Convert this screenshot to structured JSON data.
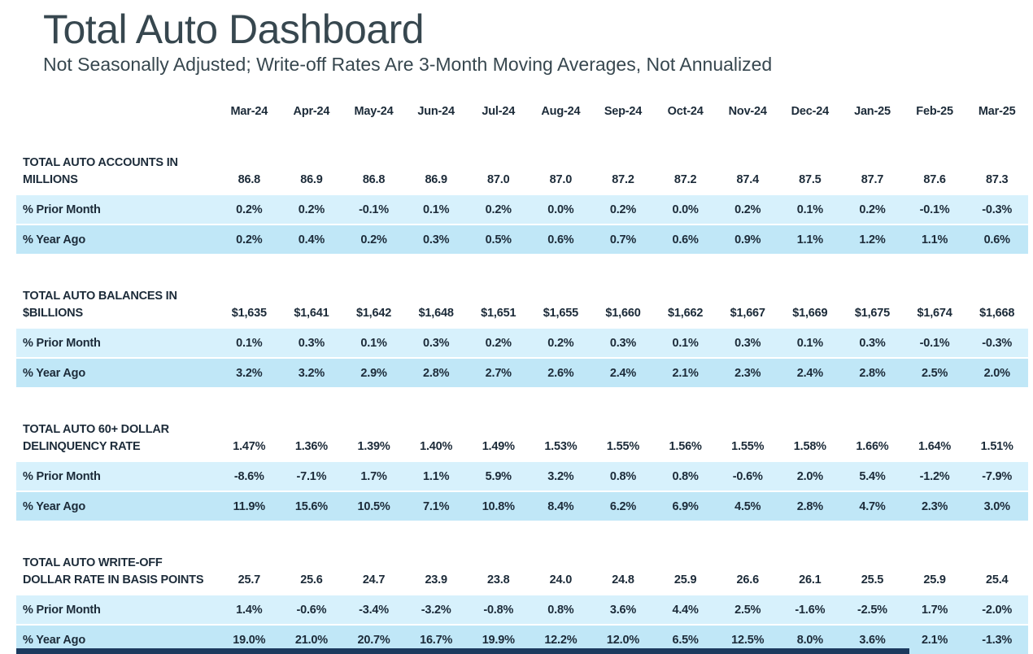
{
  "header": {
    "title": "Total Auto Dashboard",
    "subtitle": "Not Seasonally Adjusted; Write-off Rates Are 3-Month Moving Averages, Not Annualized"
  },
  "table": {
    "months": [
      "Mar-24",
      "Apr-24",
      "May-24",
      "Jun-24",
      "Jul-24",
      "Aug-24",
      "Sep-24",
      "Oct-24",
      "Nov-24",
      "Dec-24",
      "Jan-25",
      "Feb-25",
      "Mar-25"
    ],
    "row_labels": {
      "prior": "% Prior Month",
      "year": "% Year Ago"
    },
    "sections": [
      {
        "name_line1": "TOTAL AUTO ACCOUNTS IN",
        "name_line2": "MILLIONS",
        "values": [
          "86.8",
          "86.9",
          "86.8",
          "86.9",
          "87.0",
          "87.0",
          "87.2",
          "87.2",
          "87.4",
          "87.5",
          "87.7",
          "87.6",
          "87.3"
        ],
        "prior_month": [
          "0.2%",
          "0.2%",
          "-0.1%",
          "0.1%",
          "0.2%",
          "0.0%",
          "0.2%",
          "0.0%",
          "0.2%",
          "0.1%",
          "0.2%",
          "-0.1%",
          "-0.3%"
        ],
        "year_ago": [
          "0.2%",
          "0.4%",
          "0.2%",
          "0.3%",
          "0.5%",
          "0.6%",
          "0.7%",
          "0.6%",
          "0.9%",
          "1.1%",
          "1.2%",
          "1.1%",
          "0.6%"
        ]
      },
      {
        "name_line1": "TOTAL AUTO BALANCES IN",
        "name_line2": "$BILLIONS",
        "values": [
          "$1,635",
          "$1,641",
          "$1,642",
          "$1,648",
          "$1,651",
          "$1,655",
          "$1,660",
          "$1,662",
          "$1,667",
          "$1,669",
          "$1,675",
          "$1,674",
          "$1,668"
        ],
        "prior_month": [
          "0.1%",
          "0.3%",
          "0.1%",
          "0.3%",
          "0.2%",
          "0.2%",
          "0.3%",
          "0.1%",
          "0.3%",
          "0.1%",
          "0.3%",
          "-0.1%",
          "-0.3%"
        ],
        "year_ago": [
          "3.2%",
          "3.2%",
          "2.9%",
          "2.8%",
          "2.7%",
          "2.6%",
          "2.4%",
          "2.1%",
          "2.3%",
          "2.4%",
          "2.8%",
          "2.5%",
          "2.0%"
        ]
      },
      {
        "name_line1": "TOTAL AUTO 60+ DOLLAR",
        "name_line2": "DELINQUENCY RATE",
        "values": [
          "1.47%",
          "1.36%",
          "1.39%",
          "1.40%",
          "1.49%",
          "1.53%",
          "1.55%",
          "1.56%",
          "1.55%",
          "1.58%",
          "1.66%",
          "1.64%",
          "1.51%"
        ],
        "prior_month": [
          "-8.6%",
          "-7.1%",
          "1.7%",
          "1.1%",
          "5.9%",
          "3.2%",
          "0.8%",
          "0.8%",
          "-0.6%",
          "2.0%",
          "5.4%",
          "-1.2%",
          "-7.9%"
        ],
        "year_ago": [
          "11.9%",
          "15.6%",
          "10.5%",
          "7.1%",
          "10.8%",
          "8.4%",
          "6.2%",
          "6.9%",
          "4.5%",
          "2.8%",
          "4.7%",
          "2.3%",
          "3.0%"
        ]
      },
      {
        "name_line1": "TOTAL AUTO WRITE-OFF",
        "name_line2": "DOLLAR RATE IN BASIS POINTS",
        "values": [
          "25.7",
          "25.6",
          "24.7",
          "23.9",
          "23.8",
          "24.0",
          "24.8",
          "25.9",
          "26.6",
          "26.1",
          "25.5",
          "25.9",
          "25.4"
        ],
        "prior_month": [
          "1.4%",
          "-0.6%",
          "-3.4%",
          "-3.2%",
          "-0.8%",
          "0.8%",
          "3.6%",
          "4.4%",
          "2.5%",
          "-1.6%",
          "-2.5%",
          "1.7%",
          "-2.0%"
        ],
        "year_ago": [
          "19.0%",
          "21.0%",
          "20.7%",
          "16.7%",
          "19.9%",
          "12.2%",
          "12.0%",
          "6.5%",
          "12.5%",
          "8.0%",
          "3.6%",
          "2.1%",
          "-1.3%"
        ]
      }
    ]
  },
  "colors": {
    "title_text": "#37474f",
    "table_text": "#1c2b39",
    "stripe_prior_month": "#d7f1fc",
    "stripe_year_ago": "#c0e7f7",
    "bottom_accent_bar": "#1b3a5e",
    "background": "#ffffff"
  },
  "chart_data": [
    {
      "type": "table",
      "title": "TOTAL AUTO ACCOUNTS IN MILLIONS",
      "categories": [
        "Mar-24",
        "Apr-24",
        "May-24",
        "Jun-24",
        "Jul-24",
        "Aug-24",
        "Sep-24",
        "Oct-24",
        "Nov-24",
        "Dec-24",
        "Jan-25",
        "Feb-25",
        "Mar-25"
      ],
      "series": [
        {
          "name": "Accounts (millions)",
          "values": [
            86.8,
            86.9,
            86.8,
            86.9,
            87.0,
            87.0,
            87.2,
            87.2,
            87.4,
            87.5,
            87.7,
            87.6,
            87.3
          ]
        },
        {
          "name": "% Prior Month",
          "values": [
            0.2,
            0.2,
            -0.1,
            0.1,
            0.2,
            0.0,
            0.2,
            0.0,
            0.2,
            0.1,
            0.2,
            -0.1,
            -0.3
          ]
        },
        {
          "name": "% Year Ago",
          "values": [
            0.2,
            0.4,
            0.2,
            0.3,
            0.5,
            0.6,
            0.7,
            0.6,
            0.9,
            1.1,
            1.2,
            1.1,
            0.6
          ]
        }
      ]
    },
    {
      "type": "table",
      "title": "TOTAL AUTO BALANCES IN $BILLIONS",
      "categories": [
        "Mar-24",
        "Apr-24",
        "May-24",
        "Jun-24",
        "Jul-24",
        "Aug-24",
        "Sep-24",
        "Oct-24",
        "Nov-24",
        "Dec-24",
        "Jan-25",
        "Feb-25",
        "Mar-25"
      ],
      "series": [
        {
          "name": "Balances ($B)",
          "values": [
            1635,
            1641,
            1642,
            1648,
            1651,
            1655,
            1660,
            1662,
            1667,
            1669,
            1675,
            1674,
            1668
          ]
        },
        {
          "name": "% Prior Month",
          "values": [
            0.1,
            0.3,
            0.1,
            0.3,
            0.2,
            0.2,
            0.3,
            0.1,
            0.3,
            0.1,
            0.3,
            -0.1,
            -0.3
          ]
        },
        {
          "name": "% Year Ago",
          "values": [
            3.2,
            3.2,
            2.9,
            2.8,
            2.7,
            2.6,
            2.4,
            2.1,
            2.3,
            2.4,
            2.8,
            2.5,
            2.0
          ]
        }
      ]
    },
    {
      "type": "table",
      "title": "TOTAL AUTO 60+ DOLLAR DELINQUENCY RATE",
      "categories": [
        "Mar-24",
        "Apr-24",
        "May-24",
        "Jun-24",
        "Jul-24",
        "Aug-24",
        "Sep-24",
        "Oct-24",
        "Nov-24",
        "Dec-24",
        "Jan-25",
        "Feb-25",
        "Mar-25"
      ],
      "series": [
        {
          "name": "Delinquency Rate (%)",
          "values": [
            1.47,
            1.36,
            1.39,
            1.4,
            1.49,
            1.53,
            1.55,
            1.56,
            1.55,
            1.58,
            1.66,
            1.64,
            1.51
          ]
        },
        {
          "name": "% Prior Month",
          "values": [
            -8.6,
            -7.1,
            1.7,
            1.1,
            5.9,
            3.2,
            0.8,
            0.8,
            -0.6,
            2.0,
            5.4,
            -1.2,
            -7.9
          ]
        },
        {
          "name": "% Year Ago",
          "values": [
            11.9,
            15.6,
            10.5,
            7.1,
            10.8,
            8.4,
            6.2,
            6.9,
            4.5,
            2.8,
            4.7,
            2.3,
            3.0
          ]
        }
      ]
    },
    {
      "type": "table",
      "title": "TOTAL AUTO WRITE-OFF DOLLAR RATE IN BASIS POINTS",
      "categories": [
        "Mar-24",
        "Apr-24",
        "May-24",
        "Jun-24",
        "Jul-24",
        "Aug-24",
        "Sep-24",
        "Oct-24",
        "Nov-24",
        "Dec-24",
        "Jan-25",
        "Feb-25",
        "Mar-25"
      ],
      "series": [
        {
          "name": "Write-off Rate (bps)",
          "values": [
            25.7,
            25.6,
            24.7,
            23.9,
            23.8,
            24.0,
            24.8,
            25.9,
            26.6,
            26.1,
            25.5,
            25.9,
            25.4
          ]
        },
        {
          "name": "% Prior Month",
          "values": [
            1.4,
            -0.6,
            -3.4,
            -3.2,
            -0.8,
            0.8,
            3.6,
            4.4,
            2.5,
            -1.6,
            -2.5,
            1.7,
            -2.0
          ]
        },
        {
          "name": "% Year Ago",
          "values": [
            19.0,
            21.0,
            20.7,
            16.7,
            19.9,
            12.2,
            12.0,
            6.5,
            12.5,
            8.0,
            3.6,
            2.1,
            -1.3
          ]
        }
      ]
    }
  ]
}
